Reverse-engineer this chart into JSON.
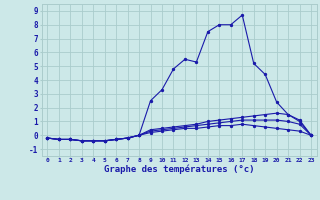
{
  "bg_color": "#cce8e8",
  "grid_color": "#aacccc",
  "line_color": "#1a1aaa",
  "xlabel": "Graphe des températures (°c)",
  "xlabel_color": "#1a1aaa",
  "xlabel_fontsize": 6.5,
  "ytick_labels": [
    "-1",
    "0",
    "1",
    "2",
    "3",
    "4",
    "5",
    "6",
    "7",
    "8",
    "9"
  ],
  "ylim": [
    -1.5,
    9.5
  ],
  "xlim": [
    -0.5,
    23.5
  ],
  "series": [
    {
      "x": [
        0,
        1,
        2,
        3,
        4,
        5,
        6,
        7,
        8,
        9,
        10,
        11,
        12,
        13,
        14,
        15,
        16,
        17,
        18,
        19,
        20,
        21,
        22,
        23
      ],
      "y": [
        -0.2,
        -0.3,
        -0.3,
        -0.4,
        -0.4,
        -0.4,
        -0.3,
        -0.2,
        0.0,
        2.5,
        3.3,
        4.8,
        5.5,
        5.3,
        7.5,
        8.0,
        8.0,
        8.7,
        5.2,
        4.4,
        2.4,
        1.5,
        1.0,
        0.0
      ]
    },
    {
      "x": [
        0,
        1,
        2,
        3,
        4,
        5,
        6,
        7,
        8,
        9,
        10,
        11,
        12,
        13,
        14,
        15,
        16,
        17,
        18,
        19,
        20,
        21,
        22,
        23
      ],
      "y": [
        -0.2,
        -0.3,
        -0.3,
        -0.4,
        -0.4,
        -0.4,
        -0.3,
        -0.2,
        0.0,
        0.4,
        0.5,
        0.6,
        0.7,
        0.8,
        1.0,
        1.1,
        1.2,
        1.3,
        1.4,
        1.5,
        1.6,
        1.5,
        1.1,
        0.0
      ]
    },
    {
      "x": [
        0,
        1,
        2,
        3,
        4,
        5,
        6,
        7,
        8,
        9,
        10,
        11,
        12,
        13,
        14,
        15,
        16,
        17,
        18,
        19,
        20,
        21,
        22,
        23
      ],
      "y": [
        -0.2,
        -0.3,
        -0.3,
        -0.4,
        -0.4,
        -0.4,
        -0.3,
        -0.2,
        0.0,
        0.3,
        0.4,
        0.5,
        0.6,
        0.7,
        0.8,
        0.9,
        1.0,
        1.1,
        1.1,
        1.1,
        1.1,
        1.0,
        0.8,
        0.0
      ]
    },
    {
      "x": [
        0,
        1,
        2,
        3,
        4,
        5,
        6,
        7,
        8,
        9,
        10,
        11,
        12,
        13,
        14,
        15,
        16,
        17,
        18,
        19,
        20,
        21,
        22,
        23
      ],
      "y": [
        -0.2,
        -0.3,
        -0.3,
        -0.4,
        -0.4,
        -0.4,
        -0.3,
        -0.2,
        0.0,
        0.2,
        0.3,
        0.4,
        0.5,
        0.5,
        0.6,
        0.7,
        0.7,
        0.8,
        0.7,
        0.6,
        0.5,
        0.4,
        0.3,
        0.0
      ]
    }
  ]
}
